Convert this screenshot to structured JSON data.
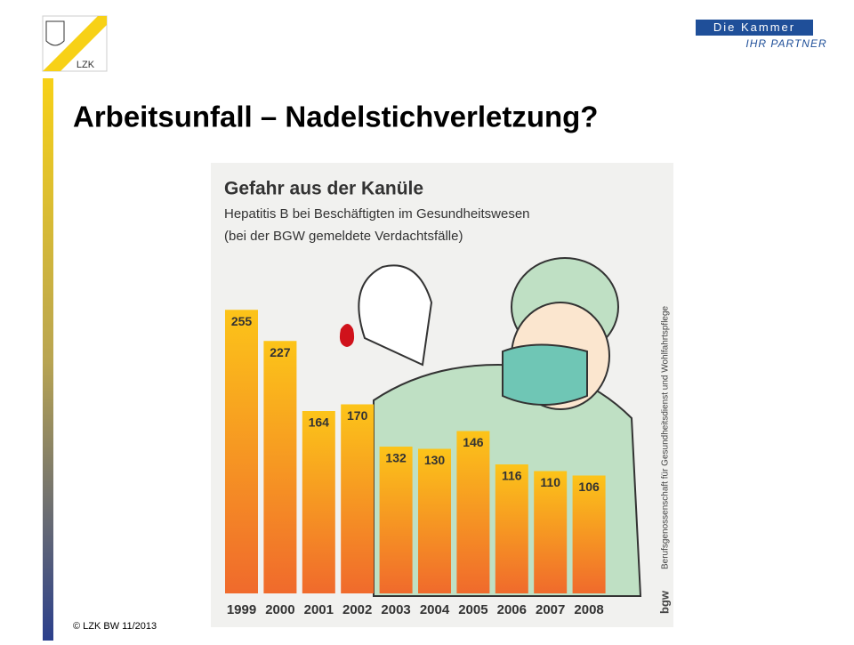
{
  "slide": {
    "title": "Arbeitsunfall – Nadelstichverletzung?",
    "footer": "© LZK BW 11/2013",
    "logo_left": "LZK",
    "logo_right_top": "Die Kammer",
    "logo_right_bottom": "IHR PARTNER"
  },
  "chart_data": {
    "type": "bar",
    "title": "Gefahr aus der Kanüle",
    "subtitle": [
      "Hepatitis B bei Beschäftigten im Gesundheitswesen",
      "(bei der BGW gemeldete Verdachtsfälle)"
    ],
    "source": "Berufsgenossenschaft für Gesundheitsdienst und Wohlfahrtspflege",
    "source_logo": "bgw",
    "categories": [
      "1999",
      "2000",
      "2001",
      "2002",
      "2003",
      "2004",
      "2005",
      "2006",
      "2007",
      "2008"
    ],
    "values": [
      255,
      227,
      164,
      170,
      132,
      130,
      146,
      116,
      110,
      106
    ],
    "color": [
      "#fcc419",
      "#f06a2c"
    ]
  }
}
